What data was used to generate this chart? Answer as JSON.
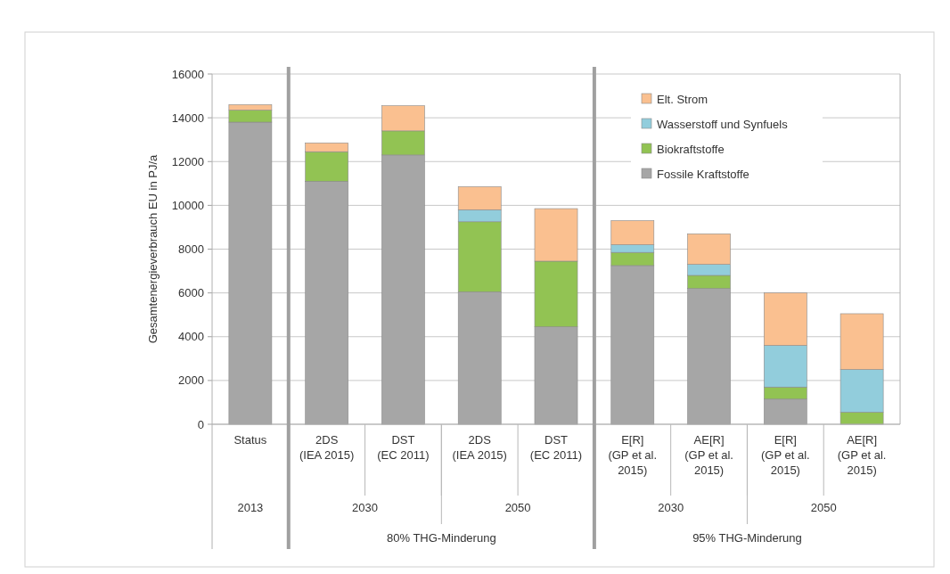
{
  "chart_data": {
    "type": "bar",
    "stacked": true,
    "ylabel": "Gesamtenergieverbrauch EU  in PJ/a",
    "categories": [
      "Status",
      "2DS (IEA 2015)",
      "DST (EC 2011)",
      "2DS (IEA 2015)",
      "DST (EC 2011)",
      "E[R] (GP et al. 2015)",
      "AE[R] (GP et al. 2015)",
      "E[R] (GP et al. 2015)",
      "AE[R] (GP et al. 2015)"
    ],
    "series": [
      {
        "name": "Fossile Kraftstoffe",
        "color": "#a6a6a6",
        "values": [
          13800,
          11100,
          12300,
          6050,
          4450,
          7250,
          6200,
          1150,
          0
        ]
      },
      {
        "name": "Biokraftstoffe",
        "color": "#92c353",
        "values": [
          550,
          1350,
          1100,
          3200,
          3000,
          600,
          600,
          550,
          550
        ]
      },
      {
        "name": "Wasserstoff und Synfuels",
        "color": "#92cddc",
        "values": [
          0,
          0,
          0,
          550,
          0,
          350,
          500,
          1900,
          1950
        ]
      },
      {
        "name": "Elt. Strom",
        "color": "#fac090",
        "values": [
          250,
          400,
          1150,
          1050,
          2400,
          1100,
          1400,
          2400,
          2550
        ]
      }
    ],
    "ylim": [
      0,
      16000
    ],
    "yticks": [
      0,
      2000,
      4000,
      6000,
      8000,
      10000,
      12000,
      14000,
      16000
    ],
    "grid": "y",
    "legend": "top right",
    "annotations": [
      "2013",
      "2030",
      "2050",
      "2030",
      "2050",
      "80% THG-Minderung",
      "95% THG-Minderung"
    ]
  }
}
